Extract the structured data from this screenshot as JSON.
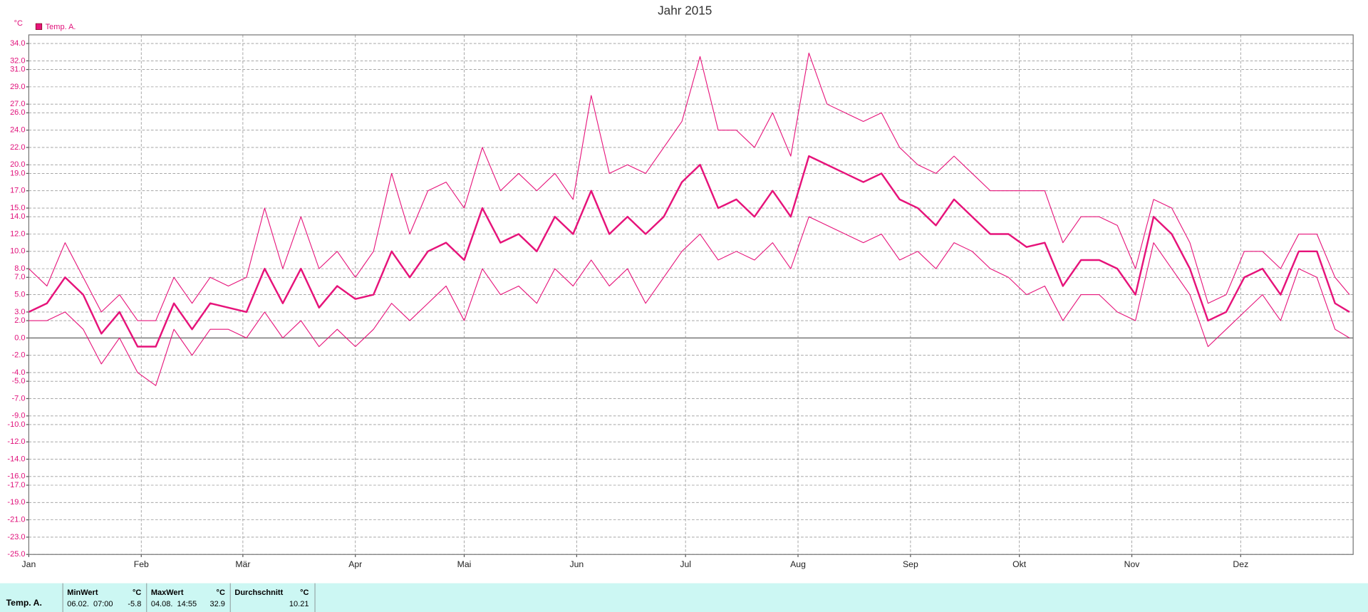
{
  "chart_data": {
    "type": "line",
    "title": "Jahr 2015",
    "y_unit": "°C",
    "legend": "Temp. A.",
    "x": [
      0,
      5,
      10,
      15,
      20,
      25,
      30,
      35,
      40,
      45,
      50,
      55,
      60,
      65,
      70,
      75,
      80,
      85,
      90,
      95,
      100,
      105,
      110,
      115,
      120,
      125,
      130,
      135,
      140,
      145,
      150,
      155,
      160,
      165,
      170,
      175,
      180,
      185,
      190,
      195,
      200,
      205,
      210,
      215,
      220,
      225,
      230,
      235,
      240,
      245,
      250,
      255,
      260,
      265,
      270,
      275,
      280,
      285,
      290,
      295,
      300,
      305,
      310,
      315,
      320,
      325,
      330,
      335,
      340,
      345,
      350,
      355,
      360,
      364
    ],
    "xlim": [
      0,
      365
    ],
    "xticks": [
      {
        "value": 0,
        "label": "Jan"
      },
      {
        "value": 31,
        "label": "Feb"
      },
      {
        "value": 59,
        "label": "Mär"
      },
      {
        "value": 90,
        "label": "Apr"
      },
      {
        "value": 120,
        "label": "Mai"
      },
      {
        "value": 151,
        "label": "Jun"
      },
      {
        "value": 181,
        "label": "Jul"
      },
      {
        "value": 212,
        "label": "Aug"
      },
      {
        "value": 243,
        "label": "Sep"
      },
      {
        "value": 273,
        "label": "Okt"
      },
      {
        "value": 304,
        "label": "Nov"
      },
      {
        "value": 334,
        "label": "Dez"
      }
    ],
    "ylim": [
      -25,
      35
    ],
    "yticks": [
      {
        "value": 34,
        "label": "34.0"
      },
      {
        "value": 32,
        "label": "32.0"
      },
      {
        "value": 31,
        "label": "31.0"
      },
      {
        "value": 29,
        "label": "29.0"
      },
      {
        "value": 27,
        "label": "27.0"
      },
      {
        "value": 26,
        "label": "26.0"
      },
      {
        "value": 24,
        "label": "24.0"
      },
      {
        "value": 22,
        "label": "22.0"
      },
      {
        "value": 20,
        "label": "20.0"
      },
      {
        "value": 19,
        "label": "19.0"
      },
      {
        "value": 17,
        "label": "17.0"
      },
      {
        "value": 15,
        "label": "15.0"
      },
      {
        "value": 14,
        "label": "14.0"
      },
      {
        "value": 12,
        "label": "12.0"
      },
      {
        "value": 10,
        "label": "10.0"
      },
      {
        "value": 8,
        "label": "8.0"
      },
      {
        "value": 7,
        "label": "7.0"
      },
      {
        "value": 5,
        "label": "5.0"
      },
      {
        "value": 3,
        "label": "3.0"
      },
      {
        "value": 2,
        "label": "2.0"
      },
      {
        "value": 0,
        "label": "0.0"
      },
      {
        "value": -2,
        "label": "-2.0"
      },
      {
        "value": -4,
        "label": "-4.0"
      },
      {
        "value": -5,
        "label": "-5.0"
      },
      {
        "value": -7,
        "label": "-7.0"
      },
      {
        "value": -9,
        "label": "-9.0"
      },
      {
        "value": -10,
        "label": "-10.0"
      },
      {
        "value": -12,
        "label": "-12.0"
      },
      {
        "value": -14,
        "label": "-14.0"
      },
      {
        "value": -16,
        "label": "-16.0"
      },
      {
        "value": -17,
        "label": "-17.0"
      },
      {
        "value": -19,
        "label": "-19.0"
      },
      {
        "value": -21,
        "label": "-21.0"
      },
      {
        "value": -23,
        "label": "-23.0"
      },
      {
        "value": -25,
        "label": "-25.0"
      }
    ],
    "grid": true,
    "series": [
      {
        "name": "Temp. A.",
        "color": "#e6137a",
        "values": [
          3,
          4,
          7,
          5,
          0.5,
          3,
          -1,
          -1,
          4,
          1,
          4,
          3.5,
          3,
          8,
          4,
          8,
          3.5,
          6,
          4.5,
          5,
          10,
          7,
          10,
          11,
          9,
          15,
          11,
          12,
          10,
          14,
          12,
          17,
          12,
          14,
          12,
          14,
          18,
          20,
          15,
          16,
          14,
          17,
          14,
          21,
          20,
          19,
          18,
          19,
          16,
          15,
          13,
          16,
          14,
          12,
          12,
          10.5,
          11,
          6,
          9,
          9,
          8,
          5,
          14,
          12,
          8,
          2,
          3,
          7,
          8,
          5,
          10,
          10,
          4,
          3
        ],
        "low": [
          2,
          2,
          3,
          1,
          -3,
          0,
          -4,
          -5.5,
          1,
          -2,
          1,
          1,
          0,
          3,
          0,
          2,
          -1,
          1,
          -1,
          1,
          4,
          2,
          4,
          6,
          2,
          8,
          5,
          6,
          4,
          8,
          6,
          9,
          6,
          8,
          4,
          7,
          10,
          12,
          9,
          10,
          9,
          11,
          8,
          14,
          13,
          12,
          11,
          12,
          9,
          10,
          8,
          11,
          10,
          8,
          7,
          5,
          6,
          2,
          5,
          5,
          3,
          2,
          11,
          8,
          5,
          -1,
          1,
          3,
          5,
          2,
          8,
          7,
          1,
          0
        ],
        "high": [
          8,
          6,
          11,
          7,
          3,
          5,
          2,
          2,
          7,
          4,
          7,
          6,
          7,
          15,
          8,
          14,
          8,
          10,
          7,
          10,
          19,
          12,
          17,
          18,
          15,
          22,
          17,
          19,
          17,
          19,
          16,
          28,
          19,
          20,
          19,
          22,
          25,
          32.5,
          24,
          24,
          22,
          26,
          21,
          32.9,
          27,
          26,
          25,
          26,
          22,
          20,
          19,
          21,
          19,
          17,
          17,
          17,
          17,
          11,
          14,
          14,
          13,
          8,
          16,
          15,
          11,
          4,
          5,
          10,
          10,
          8,
          12,
          12,
          7,
          5
        ]
      }
    ]
  },
  "stats_table": {
    "row_label": "Temp. A.",
    "columns": [
      {
        "header": "MinWert",
        "unit": "°C",
        "time": "06.02.  07:00",
        "value": -5.8
      },
      {
        "header": "MaxWert",
        "unit": "°C",
        "time": "04.08.  14:55",
        "value": 32.9
      },
      {
        "header": "Durchschnitt",
        "unit": "°C",
        "value": 10.21
      }
    ]
  }
}
